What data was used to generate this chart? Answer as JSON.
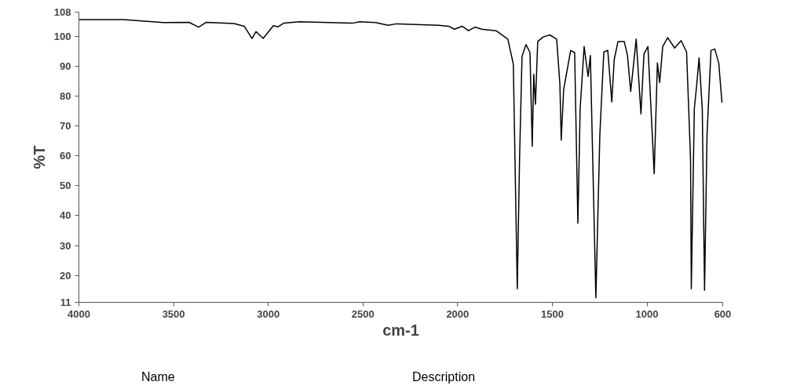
{
  "chart_data": {
    "type": "line",
    "xlabel": "cm-1",
    "ylabel": "%T",
    "annotations": [
      "Name",
      "Description"
    ],
    "xlim": [
      4000,
      600
    ],
    "ylim": [
      11,
      108
    ],
    "xticks": [
      4000,
      3500,
      3000,
      2500,
      2000,
      1500,
      1000,
      600
    ],
    "yticks": [
      11,
      20,
      30,
      40,
      50,
      60,
      70,
      80,
      90,
      100,
      108
    ],
    "grid": false,
    "marker": "none",
    "line_style": "solid",
    "series": [
      {
        "color": "#000000",
        "x": [
          4000,
          3763,
          3555,
          3418,
          3368,
          3327,
          3181,
          3127,
          3086,
          3065,
          3027,
          2973,
          2948,
          2919,
          2836,
          2558,
          2516,
          2433,
          2367,
          2325,
          2100,
          2047,
          2017,
          1976,
          1943,
          1909,
          1872,
          1797,
          1735,
          1706,
          1685,
          1673,
          1660,
          1639,
          1618,
          1606,
          1598,
          1589,
          1577,
          1548,
          1514,
          1477,
          1460,
          1453,
          1440,
          1423,
          1403,
          1382,
          1365,
          1353,
          1332,
          1311,
          1299,
          1270,
          1249,
          1228,
          1207,
          1186,
          1173,
          1153,
          1120,
          1103,
          1086,
          1057,
          1032,
          1016,
          995,
          962,
          945,
          933,
          917,
          891,
          854,
          820,
          791,
          770,
          766,
          750,
          737,
          725,
          708,
          696,
          683,
          662,
          642,
          621,
          604
        ],
        "values": [
          105.5,
          105.5,
          104.5,
          104.6,
          103,
          104.6,
          104.2,
          103.3,
          99.2,
          101.5,
          99.2,
          103.5,
          103.1,
          104.3,
          104.8,
          104.3,
          104.8,
          104.5,
          103.6,
          104.1,
          103.6,
          103.3,
          102.3,
          103.3,
          101.8,
          103,
          102.3,
          101.8,
          99,
          90.7,
          15.5,
          58.9,
          93.2,
          97.2,
          94.5,
          63.2,
          87.2,
          77.2,
          98.2,
          99.7,
          100.4,
          99,
          84,
          65.2,
          82.2,
          88.2,
          95.2,
          94.5,
          37.5,
          75.7,
          96.5,
          86.5,
          93.5,
          12.5,
          67,
          94.7,
          95.2,
          78,
          92.2,
          98.2,
          98.2,
          93.5,
          81.5,
          99,
          74,
          94,
          96.5,
          54,
          91,
          84.5,
          96.5,
          99.5,
          96,
          98.5,
          94.7,
          58.9,
          15.5,
          75.7,
          84,
          92.7,
          75.7,
          15,
          67,
          95.2,
          95.7,
          91,
          77.7
        ]
      }
    ]
  }
}
